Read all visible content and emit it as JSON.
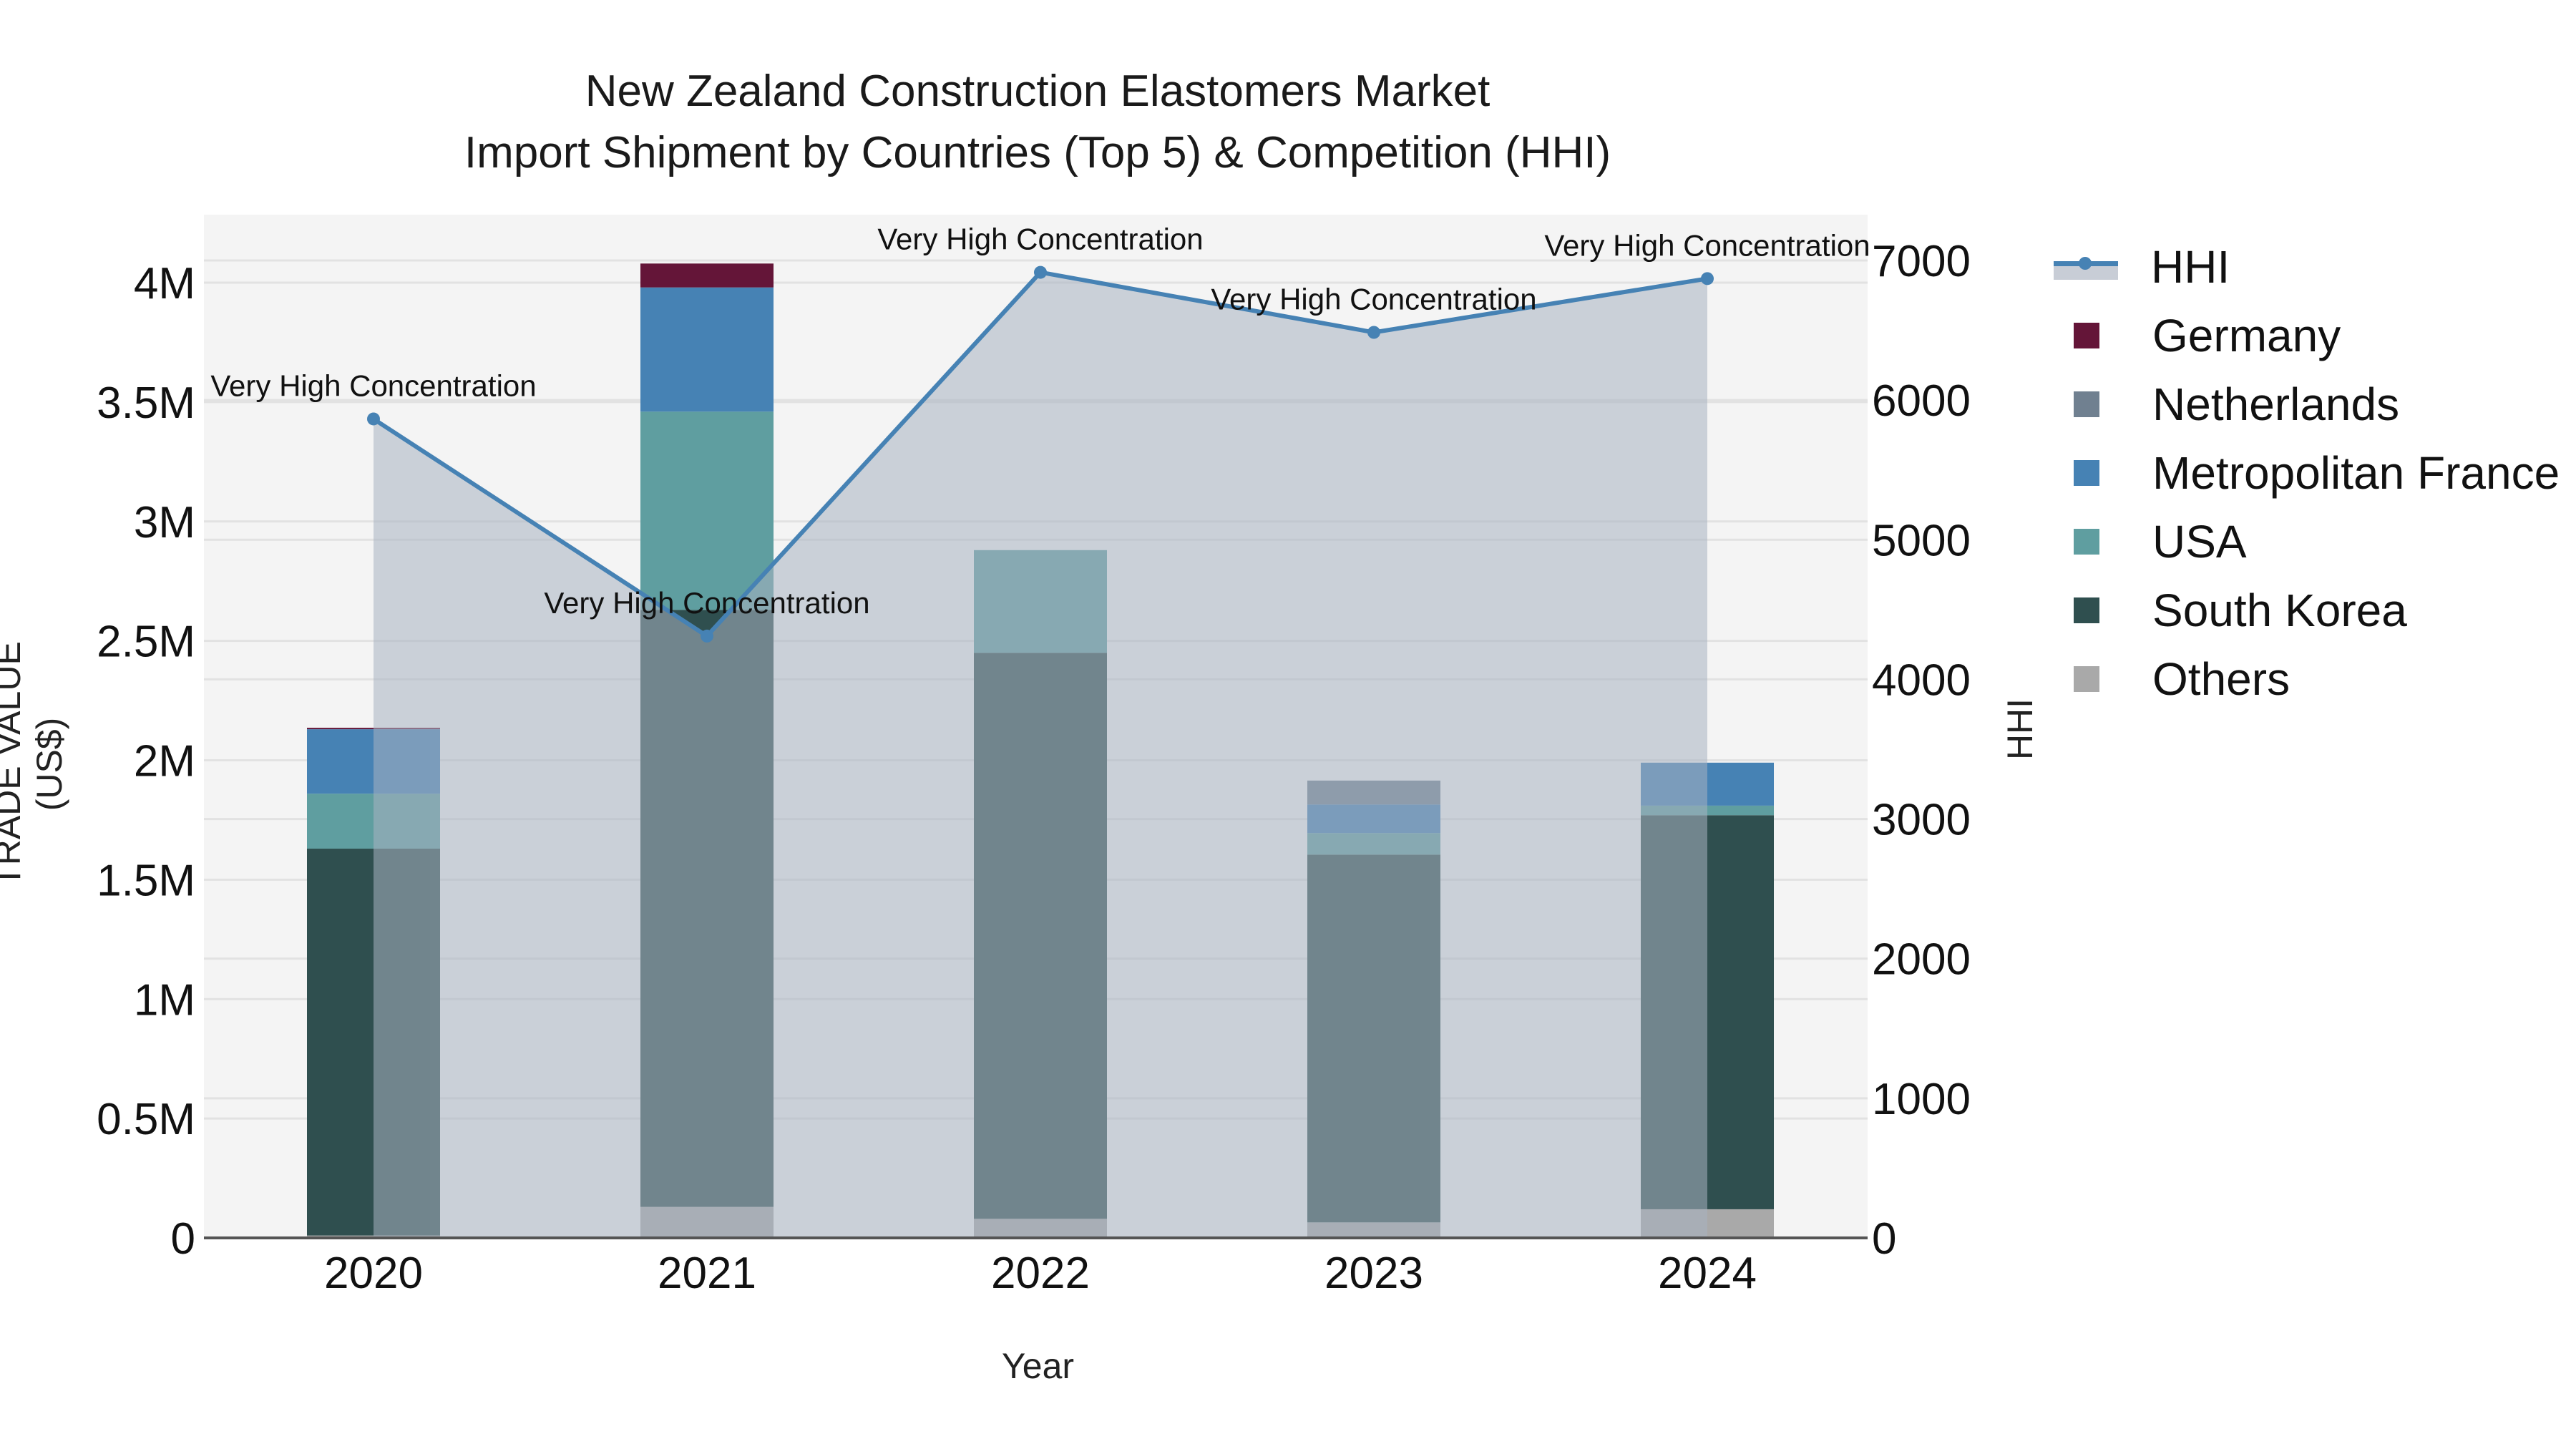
{
  "title": {
    "line1": "New Zealand Construction Elastomers Market",
    "line2": "Import Shipment by Countries (Top 5) & Competition (HHI)"
  },
  "axes": {
    "x_title": "Year",
    "y_left_title": "TRADE VALUE (US$)",
    "y_right_title": "HHI",
    "y_left_ticks": [
      "0",
      "0.5M",
      "1M",
      "1.5M",
      "2M",
      "2.5M",
      "3M",
      "3.5M",
      "4M"
    ],
    "y_right_ticks": [
      "0",
      "1000",
      "2000",
      "3000",
      "4000",
      "5000",
      "6000",
      "7000"
    ],
    "x_ticks": [
      "2020",
      "2021",
      "2022",
      "2023",
      "2024"
    ]
  },
  "legend": [
    {
      "name": "HHI",
      "type": "line",
      "color": "#4682B4"
    },
    {
      "name": "Germany",
      "type": "bar",
      "color": "#641538"
    },
    {
      "name": "Netherlands",
      "type": "bar",
      "color": "#708090"
    },
    {
      "name": "Metropolitan France",
      "type": "bar",
      "color": "#4682B4"
    },
    {
      "name": "USA",
      "type": "bar",
      "color": "#5F9EA0"
    },
    {
      "name": "South Korea",
      "type": "bar",
      "color": "#2F4F4F"
    },
    {
      "name": "Others",
      "type": "bar",
      "color": "#A9A9A9"
    }
  ],
  "colors": {
    "plot_bg": "#F4F4F4",
    "hhi_fill": "#C8CDD6",
    "hhi_line": "#4682B4",
    "grid": "#E2E2E2"
  },
  "chart_data": {
    "type": "bar",
    "subtype": "stacked bar + line (dual axis)",
    "title": "New Zealand Construction Elastomers Market — Import Shipment by Countries (Top 5) & Competition (HHI)",
    "xlabel": "Year",
    "ylabel": "TRADE VALUE (US$)",
    "y2label": "HHI",
    "categories": [
      "2020",
      "2021",
      "2022",
      "2023",
      "2024"
    ],
    "ylim": [
      0,
      4300000
    ],
    "y2lim": [
      0,
      7450
    ],
    "series": [
      {
        "name": "Others",
        "axis": "y",
        "values": [
          10000,
          130000,
          80000,
          65000,
          120000
        ]
      },
      {
        "name": "South Korea",
        "axis": "y",
        "values": [
          1620000,
          2500000,
          2370000,
          1540000,
          1650000
        ]
      },
      {
        "name": "USA",
        "axis": "y",
        "values": [
          230000,
          830000,
          430000,
          90000,
          40000
        ]
      },
      {
        "name": "Metropolitan France",
        "axis": "y",
        "values": [
          270000,
          520000,
          0,
          120000,
          180000
        ]
      },
      {
        "name": "Netherlands",
        "axis": "y",
        "values": [
          0,
          0,
          0,
          100000,
          0
        ]
      },
      {
        "name": "Germany",
        "axis": "y",
        "values": [
          6000,
          100000,
          0,
          0,
          0
        ]
      },
      {
        "name": "HHI",
        "axis": "y2",
        "type": "line",
        "values": [
          5865,
          4310,
          6915,
          6485,
          6870
        ]
      }
    ],
    "annotations": [
      {
        "x": "2020",
        "text": "Very High Concentration"
      },
      {
        "x": "2021",
        "text": "Very High Concentration"
      },
      {
        "x": "2022",
        "text": "Very High Concentration"
      },
      {
        "x": "2023",
        "text": "Very High Concentration"
      },
      {
        "x": "2024",
        "text": "Very High Concentration"
      }
    ],
    "grid": true,
    "legend_position": "right"
  }
}
